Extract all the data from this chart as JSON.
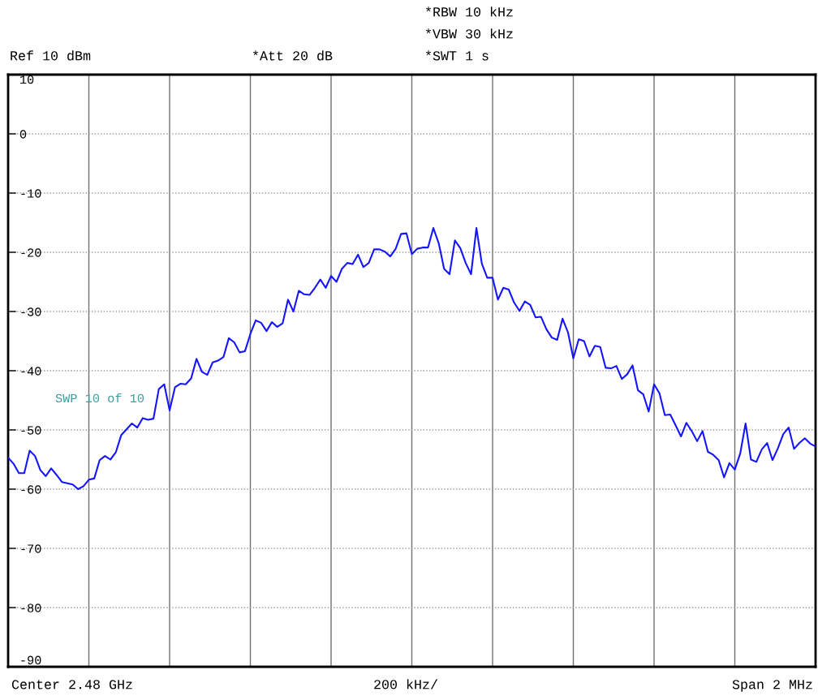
{
  "chart_data": {
    "type": "line",
    "categories": [
      null,
      null,
      null,
      null,
      null,
      null,
      null,
      null,
      null,
      null,
      null,
      null,
      null,
      null,
      null,
      null,
      null,
      null,
      null,
      null,
      null,
      null,
      null,
      null,
      null,
      null,
      null,
      null,
      null,
      null,
      null,
      null,
      null,
      null,
      null,
      null,
      null,
      null,
      null,
      null,
      null,
      null,
      null,
      null,
      null,
      null,
      null,
      null,
      null,
      null,
      null,
      null,
      null,
      null,
      null,
      null,
      null,
      null,
      null,
      null,
      null,
      null,
      null,
      null,
      null,
      null,
      null,
      null,
      null,
      null,
      null,
      null,
      null,
      null,
      null,
      null,
      null,
      null,
      null,
      null,
      null,
      null,
      null,
      null,
      null,
      null,
      null,
      null,
      null,
      null,
      null,
      null,
      null,
      null,
      null,
      null,
      null,
      null,
      null,
      null,
      null,
      null,
      null,
      null,
      null,
      null,
      null,
      null,
      null,
      null,
      null,
      null,
      null,
      null,
      null,
      null,
      null,
      null,
      null,
      null,
      null,
      null,
      null,
      null,
      null,
      null,
      null,
      null,
      null,
      null,
      null,
      null,
      null,
      null,
      null,
      null,
      null,
      null,
      null,
      null,
      null,
      null,
      null,
      null,
      null,
      null,
      null,
      null,
      null,
      null,
      null
    ],
    "series": [
      {
        "color": "#1414ff",
        "values": [
          -54.7,
          -55.7,
          -57.3,
          -57.3,
          -53.5,
          -54.4,
          -56.8,
          -57.8,
          -56.5,
          -57.6,
          -58.8,
          -59.0,
          -59.2,
          -60.0,
          -59.5,
          -58.4,
          -58.2,
          -55.1,
          -54.4,
          -55.0,
          -53.8,
          -50.9,
          -49.9,
          -48.9,
          -49.6,
          -48.0,
          -48.3,
          -48.1,
          -43.1,
          -42.3,
          -46.7,
          -42.8,
          -42.2,
          -42.3,
          -41.3,
          -38.0,
          -40.2,
          -40.7,
          -38.6,
          -38.3,
          -37.7,
          -34.5,
          -35.2,
          -36.9,
          -36.7,
          -33.8,
          -31.5,
          -31.9,
          -33.3,
          -31.8,
          -32.6,
          -32.0,
          -28.0,
          -30.0,
          -26.5,
          -27.1,
          -27.2,
          -26.0,
          -24.6,
          -26.0,
          -24.0,
          -25.0,
          -22.8,
          -21.8,
          -22.0,
          -20.4,
          -22.5,
          -21.8,
          -19.5,
          -19.5,
          -19.9,
          -20.7,
          -19.4,
          -16.9,
          -16.8,
          -20.3,
          -19.4,
          -19.2,
          -19.2,
          -15.9,
          -18.5,
          -22.8,
          -23.7,
          -18.0,
          -19.3,
          -21.8,
          -23.7,
          -15.9,
          -21.9,
          -24.3,
          -24.3,
          -28.0,
          -26.0,
          -26.3,
          -28.5,
          -29.9,
          -28.3,
          -28.9,
          -31.0,
          -30.9,
          -33.0,
          -34.4,
          -34.8,
          -31.2,
          -33.5,
          -37.9,
          -34.7,
          -35.0,
          -37.6,
          -35.8,
          -36.0,
          -39.5,
          -39.6,
          -39.2,
          -41.4,
          -40.6,
          -39.1,
          -43.3,
          -44.0,
          -46.9,
          -42.3,
          -43.8,
          -47.5,
          -47.4,
          -49.2,
          -51.1,
          -48.8,
          -50.2,
          -51.9,
          -50.2,
          -53.7,
          -54.2,
          -55.1,
          -58.0,
          -55.6,
          -56.7,
          -54.0,
          -48.9,
          -55.0,
          -55.4,
          -53.3,
          -52.2,
          -55.1,
          -53.1,
          -50.7,
          -49.6,
          -53.2,
          -52.2,
          -51.4,
          -52.3,
          -52.8
        ]
      }
    ],
    "ylim": [
      -90,
      10
    ],
    "yticks": [
      10,
      0,
      -10,
      -20,
      -30,
      -40,
      -50,
      -60,
      -70,
      -80,
      -90
    ],
    "grid": true,
    "marker": "none",
    "line_style": "solid",
    "tick_labels": "y",
    "annotations": [
      "*RBW 10 kHz",
      "*VBW 30 kHz",
      "Ref 10 dBm",
      "*Att 20 dB",
      "*SWT 1 s",
      "SWP 10 of 10",
      "Center 2.48 GHz",
      "200 kHz/",
      "Span 2 MHz"
    ]
  }
}
